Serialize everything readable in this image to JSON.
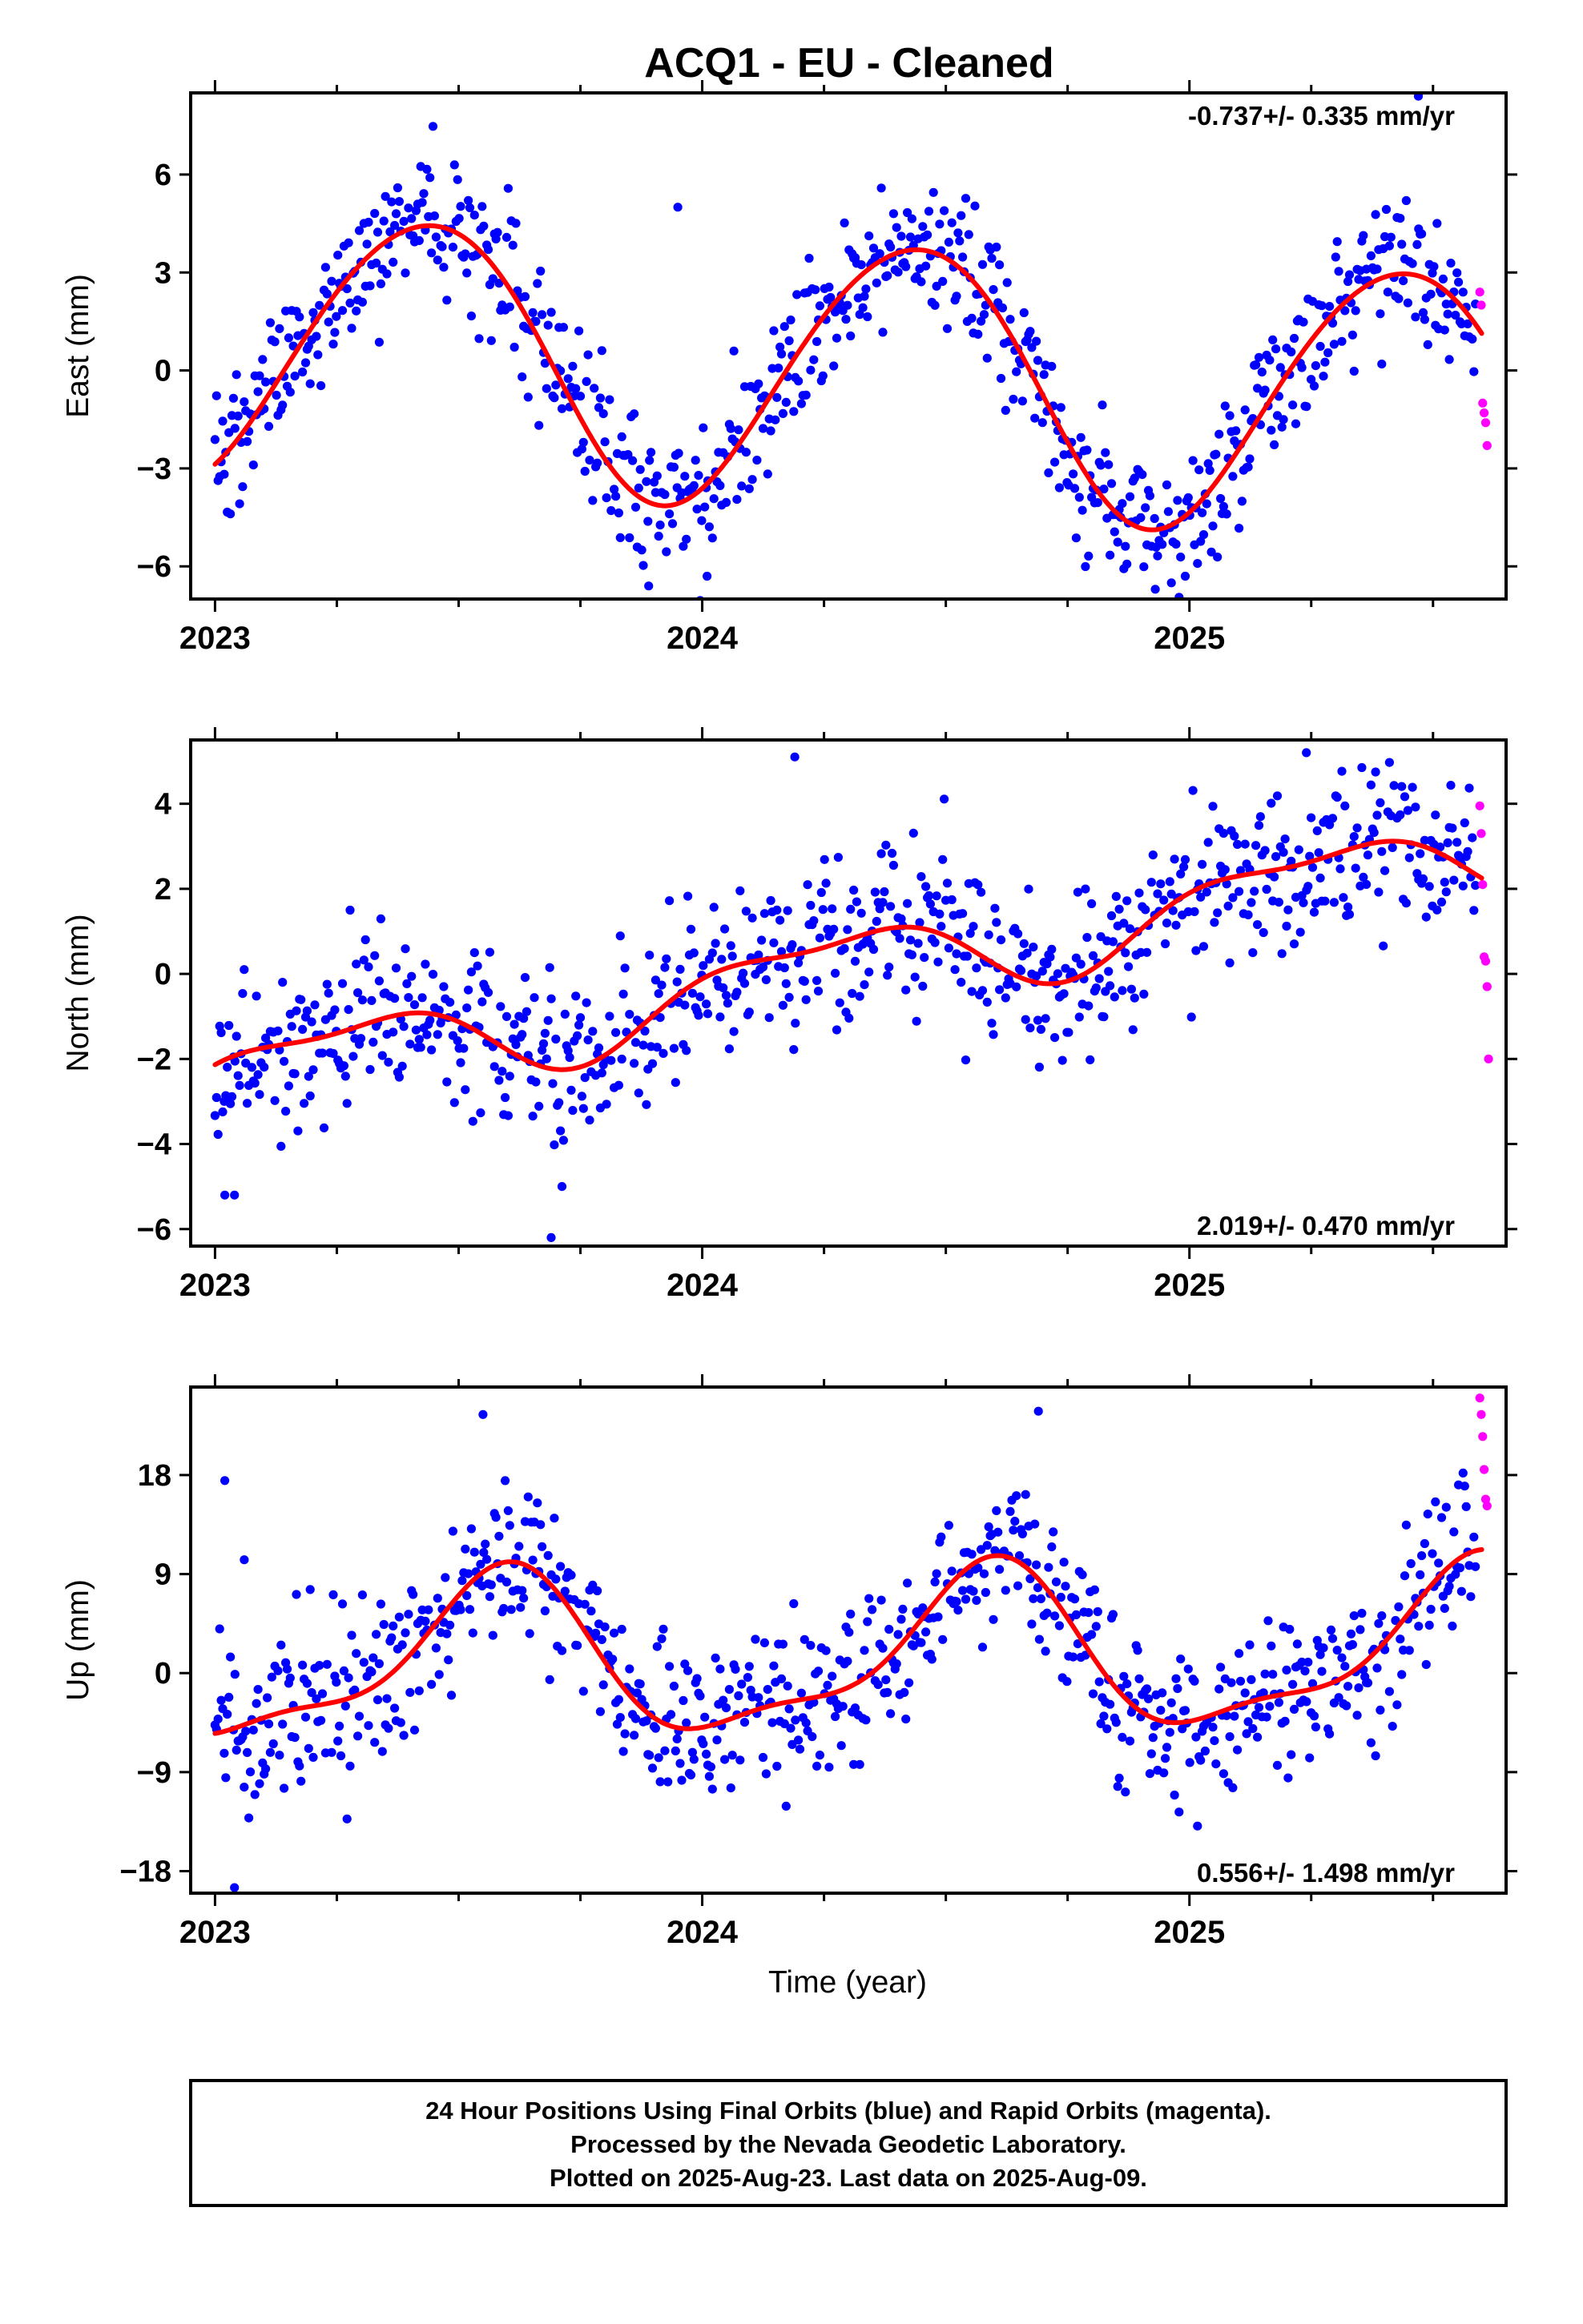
{
  "title": "ACQ1  - EU - Cleaned",
  "x_axis_label": "Time (year)",
  "footer": {
    "lines": [
      "24 Hour Positions Using Final Orbits (blue) and Rapid Orbits (magenta).",
      "Processed by the Nevada Geodetic Laboratory.",
      "Plotted on 2025-Aug-23. Last data on 2025-Aug-09."
    ]
  },
  "colors": {
    "final_orbits": "#0000ff",
    "rapid_orbits": "#ff00ff",
    "model_fit": "#ff0000",
    "axes": "#000000"
  },
  "chart_data": [
    {
      "type": "scatter",
      "name": "east",
      "ylabel": "East (mm)",
      "xlim": [
        2022.95,
        2025.65
      ],
      "ylim": [
        -7,
        8.5
      ],
      "yticks": [
        -6,
        -3,
        0,
        3,
        6
      ],
      "ytick_labels": [
        "−6",
        "−3",
        "0",
        "3",
        "6"
      ],
      "xticks": [
        2023,
        2024,
        2025
      ],
      "xtick_labels": [
        "2023",
        "2024",
        "2025"
      ],
      "rate_text": "-0.737+/- 0.335 mm/yr",
      "rate_position": "top-right",
      "trend": {
        "offset": 0.1,
        "rate": -0.737,
        "amp1": 4.1,
        "phase1": 0.18,
        "amp2": 0.25,
        "phase2": 0.0
      },
      "scatter_sd": 1.1,
      "rapid_points": [
        [
          2025.596,
          2.4
        ],
        [
          2025.599,
          2.0
        ],
        [
          2025.602,
          -1.0
        ],
        [
          2025.605,
          -1.3
        ],
        [
          2025.608,
          -1.6
        ],
        [
          2025.611,
          -2.3
        ]
      ],
      "outliers": [
        [
          2025.47,
          8.4
        ],
        [
          2023.95,
          5.0
        ],
        [
          2024.01,
          -6.3
        ],
        [
          2023.89,
          -6.6
        ],
        [
          2024.93,
          -6.7
        ]
      ]
    },
    {
      "type": "scatter",
      "name": "north",
      "ylabel": "North (mm)",
      "xlim": [
        2022.95,
        2025.65
      ],
      "ylim": [
        -6.4,
        5.5
      ],
      "yticks": [
        -6,
        -4,
        -2,
        0,
        2,
        4
      ],
      "ytick_labels": [
        "−6",
        "−4",
        "−2",
        "0",
        "2",
        "4"
      ],
      "xticks": [
        2023,
        2024,
        2025
      ],
      "xtick_labels": [
        "2023",
        "2024",
        "2025"
      ],
      "rate_text": "2.019+/- 0.470 mm/yr",
      "rate_position": "bottom-right",
      "trend": {
        "offset": -0.45,
        "rate": 2.019,
        "amp1": 0.9,
        "phase1": 0.0,
        "amp2": 0.35,
        "phase2": 0.35
      },
      "scatter_sd": 1.0,
      "rapid_points": [
        [
          2025.596,
          3.95
        ],
        [
          2025.599,
          3.3
        ],
        [
          2025.602,
          2.1
        ],
        [
          2025.605,
          0.4
        ],
        [
          2025.608,
          0.3
        ],
        [
          2025.611,
          -0.3
        ],
        [
          2025.614,
          -2.0
        ]
      ],
      "outliers": [
        [
          2024.19,
          5.1
        ],
        [
          2025.24,
          5.2
        ],
        [
          2023.69,
          -6.2
        ],
        [
          2023.02,
          -5.2
        ],
        [
          2023.04,
          -5.2
        ]
      ]
    },
    {
      "type": "scatter",
      "name": "up",
      "ylabel": "Up (mm)",
      "xlim": [
        2022.95,
        2025.65
      ],
      "ylim": [
        -20,
        26
      ],
      "yticks": [
        -18,
        -9,
        0,
        9,
        18
      ],
      "ytick_labels": [
        "−18",
        "−9",
        "0",
        "9",
        "18"
      ],
      "xticks": [
        2023,
        2024,
        2025
      ],
      "xtick_labels": [
        "2023",
        "2024",
        "2025"
      ],
      "rate_text": "0.556+/- 1.498 mm/yr",
      "rate_position": "bottom-right",
      "trend": {
        "offset": 1.2,
        "rate": 0.556,
        "amp1": 7.0,
        "phase1": 0.33,
        "amp2": 2.3,
        "phase2": 0.0
      },
      "scatter_sd": 3.6,
      "rapid_points": [
        [
          2025.596,
          25.0
        ],
        [
          2025.599,
          23.5
        ],
        [
          2025.602,
          21.5
        ],
        [
          2025.605,
          18.5
        ],
        [
          2025.608,
          15.8
        ],
        [
          2025.611,
          15.2
        ]
      ],
      "outliers": [
        [
          2023.55,
          23.5
        ],
        [
          2024.69,
          23.8
        ],
        [
          2023.04,
          -19.5
        ],
        [
          2023.02,
          17.5
        ],
        [
          2023.06,
          10.3
        ]
      ]
    }
  ]
}
